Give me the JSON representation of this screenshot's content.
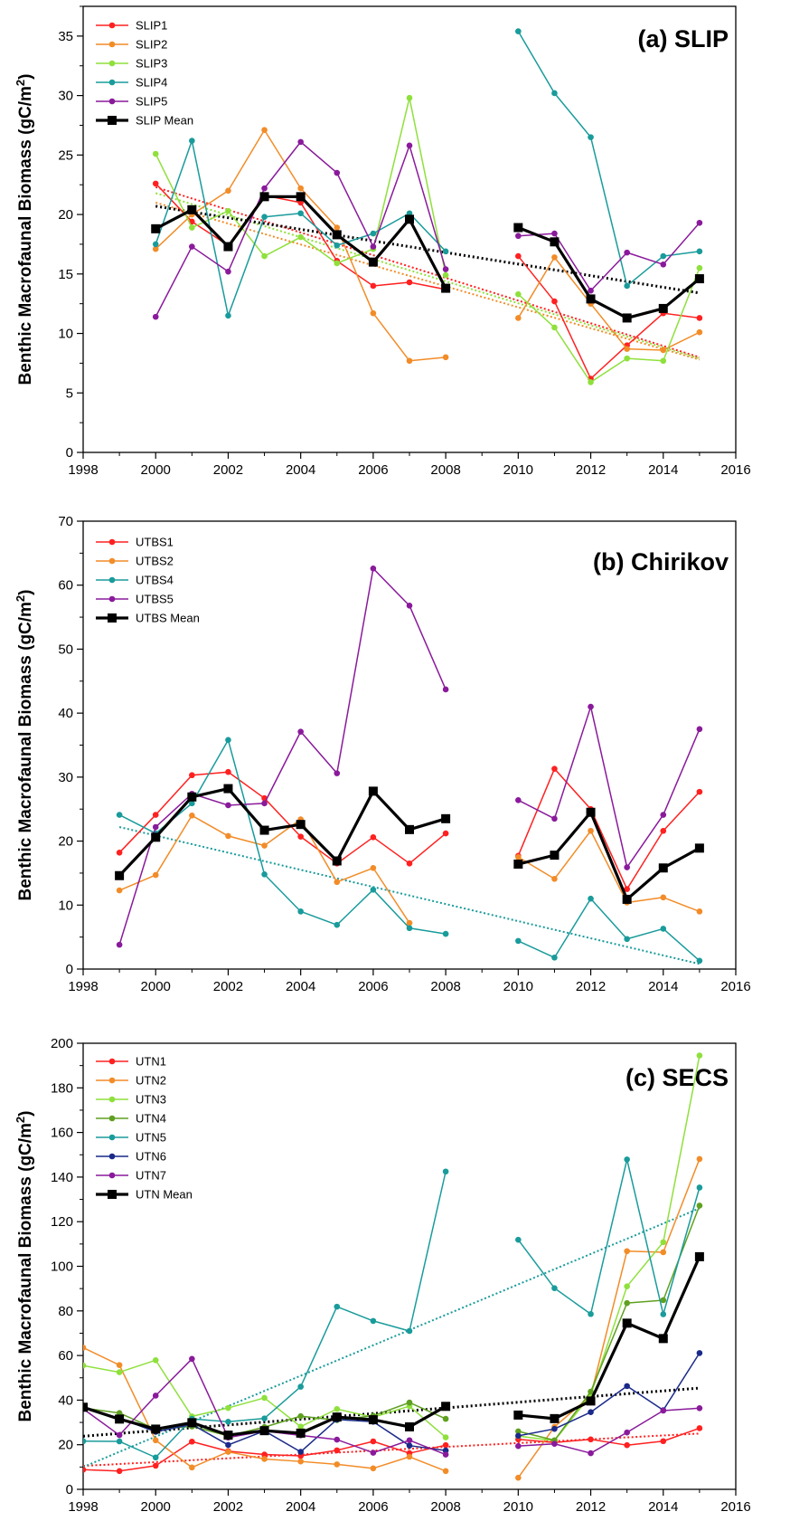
{
  "chart_data": [
    {
      "type": "line",
      "title": "(a) SLIP",
      "ylabel": "Benthic Macrofaunal Biomass (gC/m",
      "ylabel_sup": "2",
      "ylabel_end": ")",
      "xlim": [
        1998,
        2016
      ],
      "ylim": [
        0,
        37.5
      ],
      "x_ticks": [
        1998,
        2000,
        2002,
        2004,
        2006,
        2008,
        2010,
        2012,
        2014,
        2016
      ],
      "y_ticks": [
        0,
        5,
        10,
        15,
        20,
        25,
        30,
        35
      ],
      "legend_position": "top-left",
      "series": [
        {
          "name": "SLIP1",
          "color": "#ff2020",
          "x": [
            2000,
            2001,
            2002,
            2003,
            2004,
            2005,
            2006,
            2007,
            2008,
            2010,
            2011,
            2012,
            2013,
            2014,
            2015
          ],
          "y": [
            22.6,
            19.4,
            17.4,
            21.6,
            21.0,
            16.1,
            14.0,
            14.3,
            13.7,
            16.5,
            12.7,
            6.2,
            9.0,
            11.7,
            11.3
          ],
          "trend": [
            22.3,
            8.0
          ]
        },
        {
          "name": "SLIP2",
          "color": "#f28c28",
          "x": [
            2000,
            2001,
            2002,
            2003,
            2004,
            2005,
            2006,
            2007,
            2008,
            2010,
            2011,
            2012,
            2013,
            2014,
            2015
          ],
          "y": [
            17.1,
            20.0,
            22.0,
            27.1,
            22.2,
            18.9,
            11.7,
            7.7,
            8.0,
            11.3,
            16.4,
            12.5,
            8.7,
            8.6,
            10.1
          ],
          "trend": [
            21.0,
            7.8
          ]
        },
        {
          "name": "SLIP3",
          "color": "#8fe03c",
          "x": [
            2000,
            2001,
            2002,
            2003,
            2004,
            2005,
            2006,
            2007,
            2008,
            2010,
            2011,
            2012,
            2013,
            2014,
            2015
          ],
          "y": [
            25.1,
            18.9,
            20.3,
            16.5,
            18.1,
            15.9,
            17.1,
            29.8,
            14.9,
            13.3,
            10.5,
            5.9,
            7.9,
            7.7,
            15.5
          ],
          "trend": [
            21.8,
            7.9
          ]
        },
        {
          "name": "SLIP4",
          "color": "#1a9b9b",
          "x": [
            2000,
            2001,
            2002,
            2003,
            2004,
            2005,
            2006,
            2007,
            2008,
            2010,
            2011,
            2012,
            2013,
            2014,
            2015
          ],
          "y": [
            17.5,
            26.2,
            11.5,
            19.8,
            20.1,
            17.4,
            18.4,
            20.1,
            16.9,
            35.4,
            30.2,
            26.5,
            14.0,
            16.5,
            16.9
          ]
        },
        {
          "name": "SLIP5",
          "color": "#8a1a9b",
          "x": [
            2000,
            2001,
            2002,
            2003,
            2004,
            2005,
            2006,
            2007,
            2008,
            2010,
            2011,
            2012,
            2013,
            2014,
            2015
          ],
          "y": [
            11.4,
            17.3,
            15.2,
            22.2,
            26.1,
            23.5,
            17.3,
            25.8,
            15.4,
            18.2,
            18.4,
            13.6,
            16.8,
            15.8,
            19.3
          ]
        },
        {
          "name": "SLIP Mean",
          "color": "#000000",
          "mean": true,
          "x": [
            2000,
            2001,
            2002,
            2003,
            2004,
            2005,
            2006,
            2007,
            2008,
            2010,
            2011,
            2012,
            2013,
            2014,
            2015
          ],
          "y": [
            18.8,
            20.4,
            17.3,
            21.5,
            21.5,
            18.3,
            16.0,
            19.6,
            13.8,
            18.9,
            17.7,
            12.9,
            11.3,
            12.1,
            14.6
          ],
          "trend": [
            20.7,
            13.4
          ]
        }
      ]
    },
    {
      "type": "line",
      "title": "(b) Chirikov",
      "ylabel": "Benthic Macrofaunal Biomass (gC/m",
      "ylabel_sup": "2",
      "ylabel_end": ")",
      "xlim": [
        1998,
        2016
      ],
      "ylim": [
        0,
        70
      ],
      "x_ticks": [
        1998,
        2000,
        2002,
        2004,
        2006,
        2008,
        2010,
        2012,
        2014,
        2016
      ],
      "y_ticks": [
        0,
        10,
        20,
        30,
        40,
        50,
        60,
        70
      ],
      "legend_position": "top-left",
      "series": [
        {
          "name": "UTBS1",
          "color": "#ff2020",
          "x": [
            1999,
            2000,
            2001,
            2002,
            2003,
            2004,
            2005,
            2006,
            2007,
            2008,
            2010,
            2011,
            2012,
            2013,
            2014,
            2015
          ],
          "y": [
            18.2,
            24.1,
            30.3,
            30.8,
            26.7,
            20.7,
            16.5,
            20.6,
            16.5,
            21.2,
            17.7,
            31.3,
            25.0,
            12.5,
            21.6,
            27.7
          ]
        },
        {
          "name": "UTBS2",
          "color": "#f28c28",
          "x": [
            1999,
            2000,
            2001,
            2002,
            2003,
            2004,
            2005,
            2006,
            2007,
            2008,
            2010,
            2011,
            2012,
            2013,
            2014,
            2015
          ],
          "y": [
            12.3,
            14.7,
            24.0,
            20.8,
            19.3,
            23.4,
            13.6,
            15.8,
            7.2,
            null,
            17.5,
            14.1,
            21.6,
            10.4,
            11.2,
            9.0
          ]
        },
        {
          "name": "UTBS4",
          "color": "#1a9b9b",
          "x": [
            1999,
            2000,
            2001,
            2002,
            2003,
            2004,
            2005,
            2006,
            2007,
            2008,
            2010,
            2011,
            2012,
            2013,
            2014,
            2015
          ],
          "y": [
            24.1,
            21.2,
            25.9,
            35.8,
            14.8,
            9.0,
            6.9,
            12.4,
            6.4,
            5.5,
            4.4,
            1.8,
            11.0,
            4.7,
            6.3,
            1.3
          ],
          "trend": [
            22.2,
            0.8
          ]
        },
        {
          "name": "UTBS5",
          "color": "#8a1a9b",
          "x": [
            1999,
            2000,
            2001,
            2002,
            2003,
            2004,
            2005,
            2006,
            2007,
            2008,
            2010,
            2011,
            2012,
            2013,
            2014,
            2015
          ],
          "y": [
            3.8,
            22.2,
            27.4,
            25.6,
            25.9,
            37.1,
            30.6,
            62.6,
            56.8,
            43.7,
            26.4,
            23.5,
            41.0,
            15.9,
            24.1,
            37.5
          ]
        },
        {
          "name": "UTBS Mean",
          "color": "#000000",
          "mean": true,
          "x": [
            1999,
            2000,
            2001,
            2002,
            2003,
            2004,
            2005,
            2006,
            2007,
            2008,
            2010,
            2011,
            2012,
            2013,
            2014,
            2015
          ],
          "y": [
            14.6,
            20.6,
            26.9,
            28.2,
            21.7,
            22.6,
            16.9,
            27.8,
            21.8,
            23.5,
            16.4,
            17.8,
            24.5,
            10.9,
            15.8,
            18.9
          ]
        }
      ]
    },
    {
      "type": "line",
      "title": "(c) SECS",
      "ylabel": "Benthic Macrofaunal Biomass (gC/m",
      "ylabel_sup": "2",
      "ylabel_end": ")",
      "xlim": [
        1998,
        2016
      ],
      "ylim": [
        0,
        200
      ],
      "x_ticks": [
        1998,
        2000,
        2002,
        2004,
        2006,
        2008,
        2010,
        2012,
        2014,
        2016
      ],
      "y_ticks": [
        0,
        20,
        40,
        60,
        80,
        100,
        120,
        140,
        160,
        180,
        200
      ],
      "legend_position": "top-left",
      "series": [
        {
          "name": "UTN1",
          "color": "#ff2020",
          "x": [
            1998,
            1999,
            2000,
            2001,
            2002,
            2003,
            2004,
            2005,
            2006,
            2007,
            2008,
            2010,
            2011,
            2012,
            2013,
            2014,
            2015
          ],
          "y": [
            8.8,
            8.2,
            10.6,
            21.4,
            17.1,
            15.6,
            15.0,
            17.5,
            21.5,
            16.2,
            19.8,
            22.4,
            21.0,
            22.4,
            19.8,
            21.6,
            27.4
          ],
          "trend": [
            10.5,
            25.0
          ]
        },
        {
          "name": "UTN2",
          "color": "#f28c28",
          "x": [
            1998,
            1999,
            2000,
            2001,
            2002,
            2003,
            2004,
            2005,
            2006,
            2007,
            2008,
            2010,
            2011,
            2012,
            2013,
            2014,
            2015
          ],
          "y": [
            63.5,
            55.7,
            22.0,
            9.8,
            16.8,
            13.6,
            12.5,
            11.2,
            9.4,
            14.6,
            8.2,
            5.2,
            28.0,
            42.0,
            106.8,
            106.3,
            148.1
          ]
        },
        {
          "name": "UTN3",
          "color": "#8fe03c",
          "x": [
            1998,
            1999,
            2000,
            2001,
            2002,
            2003,
            2004,
            2005,
            2006,
            2007,
            2008,
            2010,
            2011,
            2012,
            2013,
            2014,
            2015
          ],
          "y": [
            55.5,
            52.5,
            57.9,
            32.7,
            36.5,
            41.0,
            28.1,
            36.0,
            32.3,
            37.3,
            23.3,
            23.9,
            21.8,
            42.3,
            91.0,
            110.8,
            194.5
          ]
        },
        {
          "name": "UTN4",
          "color": "#5fa020",
          "x": [
            1998,
            1999,
            2000,
            2001,
            2002,
            2003,
            2004,
            2005,
            2006,
            2007,
            2008,
            2010,
            2011,
            2012,
            2013,
            2014,
            2015
          ],
          "y": [
            36.5,
            34.2,
            27.0,
            28.2,
            24.0,
            27.9,
            32.8,
            31.0,
            33.0,
            38.9,
            31.6,
            26.0,
            22.0,
            43.8,
            83.5,
            84.8,
            127.2
          ]
        },
        {
          "name": "UTN5",
          "color": "#1a9b9b",
          "x": [
            1998,
            1999,
            2000,
            2001,
            2002,
            2003,
            2004,
            2005,
            2006,
            2007,
            2008,
            2010,
            2011,
            2012,
            2013,
            2014,
            2015
          ],
          "y": [
            21.6,
            21.5,
            14.3,
            31.6,
            30.3,
            31.8,
            46.0,
            81.9,
            75.5,
            71.0,
            142.5,
            111.9,
            90.2,
            78.6,
            147.9,
            78.5,
            135.3
          ],
          "trend": [
            10.0,
            126.0
          ]
        },
        {
          "name": "UTN6",
          "color": "#1a2a8a",
          "x": [
            1998,
            1999,
            2000,
            2001,
            2002,
            2003,
            2004,
            2005,
            2006,
            2007,
            2008,
            2010,
            2011,
            2012,
            2013,
            2014,
            2015
          ],
          "y": [
            36.8,
            31.9,
            25.8,
            29.1,
            19.9,
            26.2,
            16.8,
            31.3,
            30.3,
            19.6,
            17.4,
            24.0,
            27.1,
            34.6,
            46.3,
            35.5,
            61.1
          ]
        },
        {
          "name": "UTN7",
          "color": "#8a1a9b",
          "x": [
            1998,
            1999,
            2000,
            2001,
            2002,
            2003,
            2004,
            2005,
            2006,
            2007,
            2008,
            2010,
            2011,
            2012,
            2013,
            2014,
            2015
          ],
          "y": [
            36.1,
            24.3,
            42.0,
            58.5,
            23.2,
            26.1,
            24.2,
            22.3,
            16.4,
            22.0,
            15.6,
            19.4,
            20.4,
            16.2,
            25.5,
            35.3,
            36.4
          ]
        },
        {
          "name": "UTN Mean",
          "color": "#000000",
          "mean": true,
          "x": [
            1998,
            1999,
            2000,
            2001,
            2002,
            2003,
            2004,
            2005,
            2006,
            2007,
            2008,
            2010,
            2011,
            2012,
            2013,
            2014,
            2015
          ],
          "y": [
            36.8,
            31.5,
            27.0,
            29.9,
            24.3,
            26.3,
            25.2,
            32.4,
            31.2,
            28.0,
            37.2,
            33.3,
            31.7,
            39.6,
            74.5,
            67.6,
            104.3
          ],
          "trend": [
            23.8,
            45.4
          ]
        }
      ]
    }
  ]
}
